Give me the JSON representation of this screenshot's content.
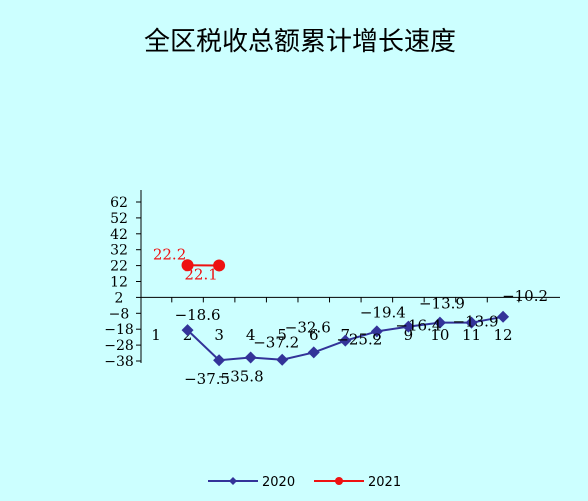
{
  "chart_data": {
    "type": "line",
    "title": "全区税收总额累计增长速度",
    "categories": [
      "1",
      "2",
      "3",
      "4",
      "5",
      "6",
      "7",
      "8",
      "9",
      "10",
      "11",
      "12"
    ],
    "y_ticks": [
      62,
      52,
      42,
      32,
      22,
      12,
      2,
      -8,
      -18,
      -28,
      -38
    ],
    "ylim": [
      -38,
      62
    ],
    "grid": false,
    "legend_position": "bottom",
    "series": [
      {
        "name": "2020",
        "color": "#333399",
        "marker": "diamond",
        "values": [
          null,
          -18.6,
          -37.5,
          -35.8,
          -37.2,
          -32.6,
          -25.2,
          -19.4,
          -16.4,
          -13.9,
          -13.9,
          -10.2
        ],
        "labels": [
          null,
          "-18.6",
          "-37.5",
          "-35.8",
          "-37.2",
          "-32.6",
          "-25.2",
          "-19.4",
          "-16.4",
          "-13.9",
          "-13.9",
          "-10.2"
        ]
      },
      {
        "name": "2021",
        "color": "#ee1111",
        "marker": "circle",
        "values": [
          null,
          22.2,
          22.1,
          null,
          null,
          null,
          null,
          null,
          null,
          null,
          null,
          null
        ],
        "labels": [
          null,
          "22.2",
          "22.1",
          null,
          null,
          null,
          null,
          null,
          null,
          null,
          null,
          null
        ]
      }
    ]
  }
}
